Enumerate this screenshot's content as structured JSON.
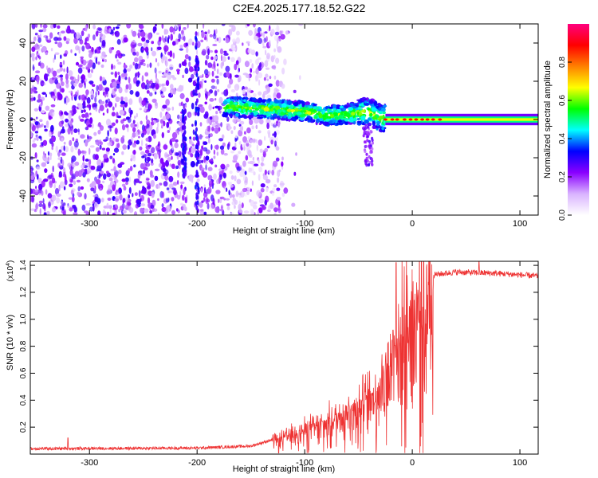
{
  "title": "C2E4.2025.177.18.52.G22",
  "chart_data": [
    {
      "type": "heatmap",
      "xlabel": "Height of straight line (km)",
      "ylabel": "Frequency (Hz)",
      "xlim": [
        -355,
        117
      ],
      "ylim": [
        -50,
        50
      ],
      "xticks": [
        -300,
        -200,
        -100,
        0,
        100
      ],
      "yticks": [
        -40,
        -20,
        0,
        20,
        40
      ],
      "colorbar": {
        "label": "Normalized spectral amplitude",
        "range": [
          0,
          1
        ],
        "ticks": [
          "0.0",
          "0.2",
          "0.4",
          "0.6",
          "0.8"
        ],
        "tick_values": [
          0,
          0.2,
          0.4,
          0.6,
          0.8
        ],
        "colors": [
          "#ffffff",
          "#d9b3ff",
          "#8a00ff",
          "#0000ff",
          "#00ffff",
          "#00ff00",
          "#ffff00",
          "#ff8000",
          "#ff0000",
          "#ff007f"
        ]
      },
      "features": {
        "noise_region_x": [
          -355,
          -120
        ],
        "signal_track": [
          {
            "x": -175,
            "y": 7
          },
          {
            "x": -150,
            "y": 6
          },
          {
            "x": -120,
            "y": 5
          },
          {
            "x": -100,
            "y": 4
          },
          {
            "x": -80,
            "y": 2
          },
          {
            "x": -60,
            "y": 3
          },
          {
            "x": -40,
            "y": 4
          },
          {
            "x": -30,
            "y": 1
          },
          {
            "x": 0,
            "y": 1
          },
          {
            "x": 50,
            "y": 0
          },
          {
            "x": 117,
            "y": 0
          }
        ],
        "strong_band_x": [
          -25,
          117
        ],
        "strong_band_y": 0
      }
    },
    {
      "type": "line",
      "xlabel": "Height of straight line (km)",
      "ylabel": "SNR (10 * v/v)",
      "scale_label": "(x10",
      "scale_exp": "4",
      "scale_close": ")",
      "xlim": [
        -355,
        117
      ],
      "ylim": [
        0,
        14300
      ],
      "xticks": [
        -300,
        -200,
        -100,
        0,
        100
      ],
      "yticks": [
        "0.2",
        "0.4",
        "0.6",
        "0.8",
        "1.0",
        "1.2",
        "1.4"
      ],
      "ytick_values": [
        2000,
        4000,
        6000,
        8000,
        10000,
        12000,
        14000
      ],
      "color": "#ee3333",
      "envelope": [
        {
          "x": -355,
          "y": 400
        },
        {
          "x": -200,
          "y": 450
        },
        {
          "x": -150,
          "y": 600
        },
        {
          "x": -120,
          "y": 1300
        },
        {
          "x": -100,
          "y": 2000
        },
        {
          "x": -80,
          "y": 2500
        },
        {
          "x": -60,
          "y": 3500
        },
        {
          "x": -40,
          "y": 4500
        },
        {
          "x": -30,
          "y": 5500
        },
        {
          "x": -20,
          "y": 7500
        },
        {
          "x": -10,
          "y": 10000
        },
        {
          "x": 0,
          "y": 11500
        },
        {
          "x": 10,
          "y": 12800
        },
        {
          "x": 20,
          "y": 13300
        },
        {
          "x": 40,
          "y": 13500
        },
        {
          "x": 80,
          "y": 13400
        },
        {
          "x": 117,
          "y": 13200
        }
      ],
      "peaks": [
        {
          "x": -320,
          "y": 1200
        },
        {
          "x": -15,
          "y": 14200
        },
        {
          "x": -18,
          "y": 9200
        },
        {
          "x": 62,
          "y": 14300
        }
      ]
    }
  ]
}
